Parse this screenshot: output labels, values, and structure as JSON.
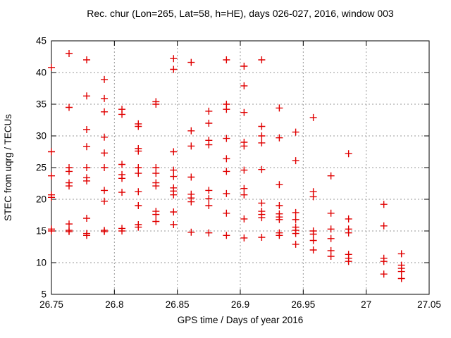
{
  "chart_data": {
    "type": "scatter",
    "title": "Rec. chur (Lon=265, Lat=58, h=HE), days 026-027, 2016, window 003",
    "xlabel": "GPS time / Days of year 2016",
    "ylabel": "STEC from uqrg / TECUs",
    "xlim": [
      26.75,
      27.05
    ],
    "ylim": [
      5,
      45
    ],
    "xticks": [
      26.75,
      26.8,
      26.85,
      26.9,
      26.95,
      27,
      27.05
    ],
    "xtick_labels": [
      "26.75",
      "26.8",
      "26.85",
      "26.9",
      "26.95",
      "27",
      "27.05"
    ],
    "yticks": [
      5,
      10,
      15,
      20,
      25,
      30,
      35,
      40,
      45
    ],
    "ytick_labels": [
      "5",
      "10",
      "15",
      "20",
      "25",
      "30",
      "35",
      "40",
      "45"
    ],
    "grid": true,
    "legend": "none",
    "marker": "plus",
    "marker_color": "#e00000",
    "grid_color": "#999999",
    "axis_color": "#000000",
    "points": [
      [
        26.75,
        40.8
      ],
      [
        26.75,
        27.5
      ],
      [
        26.75,
        23.7
      ],
      [
        26.75,
        20.7
      ],
      [
        26.75,
        20.3
      ],
      [
        26.75,
        15.3
      ],
      [
        26.75,
        15.0
      ],
      [
        26.764,
        43.0
      ],
      [
        26.764,
        34.5
      ],
      [
        26.764,
        25.0
      ],
      [
        26.764,
        24.4
      ],
      [
        26.764,
        22.6
      ],
      [
        26.764,
        22.1
      ],
      [
        26.764,
        16.1
      ],
      [
        26.764,
        15.1
      ],
      [
        26.764,
        14.9
      ],
      [
        26.778,
        42.0
      ],
      [
        26.778,
        36.3
      ],
      [
        26.778,
        31.0
      ],
      [
        26.778,
        28.3
      ],
      [
        26.778,
        25.0
      ],
      [
        26.778,
        23.4
      ],
      [
        26.778,
        22.9
      ],
      [
        26.778,
        17.0
      ],
      [
        26.778,
        14.6
      ],
      [
        26.778,
        14.3
      ],
      [
        26.792,
        38.9
      ],
      [
        26.792,
        35.9
      ],
      [
        26.792,
        33.8
      ],
      [
        26.792,
        29.8
      ],
      [
        26.792,
        27.3
      ],
      [
        26.792,
        25.0
      ],
      [
        26.792,
        21.4
      ],
      [
        26.792,
        19.7
      ],
      [
        26.792,
        15.1
      ],
      [
        26.792,
        14.9
      ],
      [
        26.806,
        34.2
      ],
      [
        26.806,
        33.4
      ],
      [
        26.806,
        25.5
      ],
      [
        26.806,
        23.9
      ],
      [
        26.806,
        23.3
      ],
      [
        26.806,
        21.1
      ],
      [
        26.806,
        15.4
      ],
      [
        26.806,
        15.0
      ],
      [
        26.819,
        31.9
      ],
      [
        26.819,
        31.5
      ],
      [
        26.819,
        28.0
      ],
      [
        26.819,
        27.6
      ],
      [
        26.819,
        25.0
      ],
      [
        26.819,
        24.1
      ],
      [
        26.819,
        21.2
      ],
      [
        26.819,
        19.0
      ],
      [
        26.819,
        16.0
      ],
      [
        26.819,
        15.6
      ],
      [
        26.833,
        35.4
      ],
      [
        26.833,
        35.0
      ],
      [
        26.833,
        25.0
      ],
      [
        26.833,
        24.1
      ],
      [
        26.833,
        22.6
      ],
      [
        26.833,
        22.1
      ],
      [
        26.833,
        18.1
      ],
      [
        26.833,
        17.6
      ],
      [
        26.833,
        16.5
      ],
      [
        26.847,
        42.2
      ],
      [
        26.847,
        40.5
      ],
      [
        26.847,
        27.5
      ],
      [
        26.847,
        24.6
      ],
      [
        26.847,
        23.6
      ],
      [
        26.847,
        21.8
      ],
      [
        26.847,
        21.3
      ],
      [
        26.847,
        20.7
      ],
      [
        26.847,
        18.0
      ],
      [
        26.847,
        16.0
      ],
      [
        26.861,
        41.6
      ],
      [
        26.861,
        30.8
      ],
      [
        26.861,
        28.4
      ],
      [
        26.861,
        23.5
      ],
      [
        26.861,
        20.8
      ],
      [
        26.861,
        20.2
      ],
      [
        26.861,
        19.6
      ],
      [
        26.861,
        14.8
      ],
      [
        26.875,
        33.9
      ],
      [
        26.875,
        32.0
      ],
      [
        26.875,
        29.3
      ],
      [
        26.875,
        28.6
      ],
      [
        26.875,
        21.4
      ],
      [
        26.875,
        20.1
      ],
      [
        26.875,
        19.0
      ],
      [
        26.875,
        14.7
      ],
      [
        26.889,
        42.0
      ],
      [
        26.889,
        35.0
      ],
      [
        26.889,
        34.2
      ],
      [
        26.889,
        29.6
      ],
      [
        26.889,
        26.4
      ],
      [
        26.889,
        24.4
      ],
      [
        26.889,
        20.9
      ],
      [
        26.889,
        17.8
      ],
      [
        26.889,
        14.3
      ],
      [
        26.903,
        41.0
      ],
      [
        26.903,
        37.9
      ],
      [
        26.903,
        33.7
      ],
      [
        26.903,
        29.0
      ],
      [
        26.903,
        28.4
      ],
      [
        26.903,
        24.6
      ],
      [
        26.903,
        21.7
      ],
      [
        26.903,
        20.7
      ],
      [
        26.903,
        16.9
      ],
      [
        26.903,
        13.9
      ],
      [
        26.917,
        42.0
      ],
      [
        26.917,
        31.5
      ],
      [
        26.917,
        30.0
      ],
      [
        26.917,
        28.9
      ],
      [
        26.917,
        24.7
      ],
      [
        26.917,
        19.4
      ],
      [
        26.917,
        18.1
      ],
      [
        26.917,
        17.6
      ],
      [
        26.917,
        17.1
      ],
      [
        26.917,
        14.0
      ],
      [
        26.931,
        34.4
      ],
      [
        26.931,
        29.7
      ],
      [
        26.931,
        22.3
      ],
      [
        26.931,
        19.0
      ],
      [
        26.931,
        17.7
      ],
      [
        26.931,
        17.2
      ],
      [
        26.931,
        16.8
      ],
      [
        26.931,
        14.7
      ],
      [
        26.931,
        14.3
      ],
      [
        26.944,
        30.6
      ],
      [
        26.944,
        26.1
      ],
      [
        26.944,
        17.9
      ],
      [
        26.944,
        16.8
      ],
      [
        26.944,
        15.6
      ],
      [
        26.944,
        15.1
      ],
      [
        26.944,
        14.6
      ],
      [
        26.944,
        12.9
      ],
      [
        26.958,
        32.9
      ],
      [
        26.958,
        21.2
      ],
      [
        26.958,
        20.4
      ],
      [
        26.958,
        15.0
      ],
      [
        26.958,
        14.5
      ],
      [
        26.958,
        13.5
      ],
      [
        26.958,
        12.0
      ],
      [
        26.972,
        23.7
      ],
      [
        26.972,
        17.8
      ],
      [
        26.972,
        15.3
      ],
      [
        26.972,
        13.8
      ],
      [
        26.972,
        11.9
      ],
      [
        26.972,
        11.0
      ],
      [
        26.986,
        27.2
      ],
      [
        26.986,
        16.9
      ],
      [
        26.986,
        15.3
      ],
      [
        26.986,
        14.7
      ],
      [
        26.986,
        11.3
      ],
      [
        26.986,
        10.7
      ],
      [
        26.986,
        10.2
      ],
      [
        27.014,
        19.2
      ],
      [
        27.014,
        15.8
      ],
      [
        27.014,
        10.7
      ],
      [
        27.014,
        10.2
      ],
      [
        27.014,
        8.2
      ],
      [
        27.028,
        11.4
      ],
      [
        27.028,
        9.6
      ],
      [
        27.028,
        9.1
      ],
      [
        27.028,
        8.6
      ],
      [
        27.028,
        7.5
      ]
    ]
  }
}
